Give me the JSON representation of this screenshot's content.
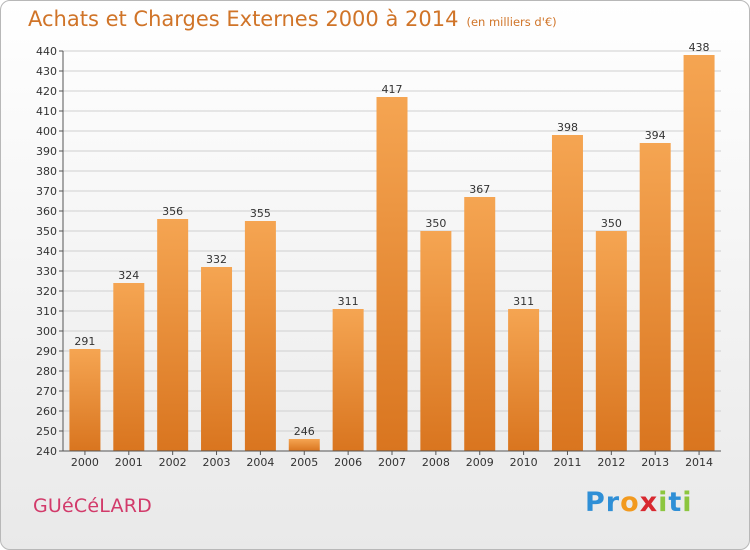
{
  "title": "Achats et Charges Externes 2000 à 2014",
  "subtitle": "(en milliers d'€)",
  "town": "GUéCéLARD",
  "logo": {
    "letters": [
      "P",
      "r",
      "o",
      "x",
      "i",
      "t",
      "i"
    ],
    "colors": [
      "#2f8fd6",
      "#2f8fd6",
      "#f29a1f",
      "#d8282f",
      "#8cc63f",
      "#2f8fd6",
      "#8cc63f"
    ]
  },
  "colors": {
    "bar_light": "#f5a552",
    "bar_dark": "#d9751f",
    "grid": "#d0d0d0"
  },
  "chart_data": {
    "type": "bar",
    "categories": [
      "2000",
      "2001",
      "2002",
      "2003",
      "2004",
      "2005",
      "2006",
      "2007",
      "2008",
      "2009",
      "2010",
      "2011",
      "2012",
      "2013",
      "2014"
    ],
    "values": [
      291,
      324,
      356,
      332,
      355,
      246,
      311,
      417,
      350,
      367,
      311,
      398,
      350,
      394,
      438
    ],
    "title": "Achats et Charges Externes 2000 à 2014",
    "ylim": [
      240,
      440
    ],
    "yticks": [
      240,
      250,
      260,
      270,
      280,
      290,
      300,
      310,
      320,
      330,
      340,
      350,
      360,
      370,
      380,
      390,
      400,
      410,
      420,
      430,
      440
    ],
    "grid": true,
    "data_labels": true
  }
}
